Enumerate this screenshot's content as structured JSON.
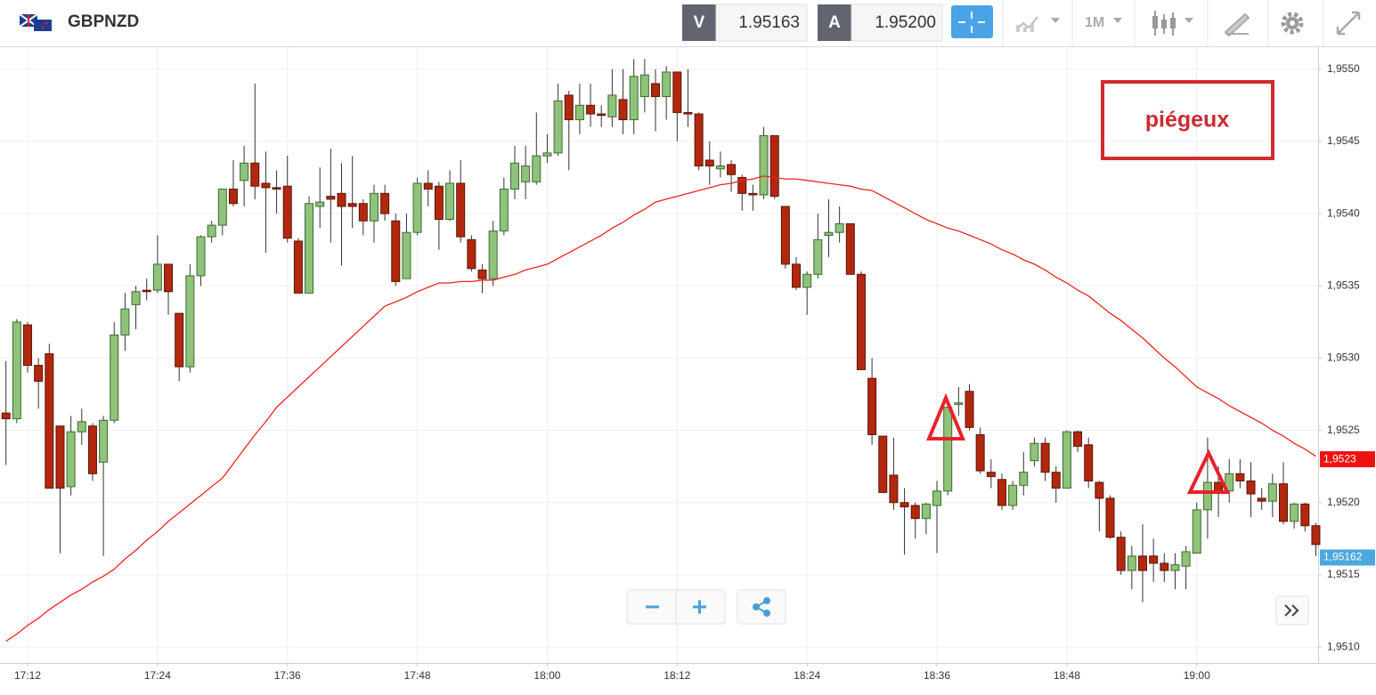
{
  "header": {
    "symbol": "GBPNZD",
    "sell_label": "V",
    "sell_price": "1.95163",
    "buy_label": "A",
    "buy_price": "1.95200",
    "timeframe": "1M"
  },
  "chart_data": {
    "type": "candlestick",
    "annotation": "piégeux",
    "categories": [
      null,
      null,
      "17:12",
      null,
      null,
      null,
      null,
      null,
      null,
      null,
      null,
      null,
      null,
      null,
      "17:24",
      null,
      null,
      null,
      null,
      null,
      null,
      null,
      null,
      null,
      null,
      null,
      "17:36",
      null,
      null,
      null,
      null,
      null,
      null,
      null,
      null,
      null,
      null,
      null,
      "17:48",
      null,
      null,
      null,
      null,
      null,
      null,
      null,
      null,
      null,
      null,
      null,
      "18:00",
      null,
      null,
      null,
      null,
      null,
      null,
      null,
      null,
      null,
      null,
      null,
      "18:12",
      null,
      null,
      null,
      null,
      null,
      null,
      null,
      null,
      null,
      null,
      null,
      "18:24",
      null,
      null,
      null,
      null,
      null,
      null,
      null,
      null,
      null,
      null,
      null,
      "18:36",
      null,
      null,
      null,
      null,
      null,
      null,
      null,
      null,
      null,
      null,
      null,
      "18:48",
      null,
      null,
      null,
      null,
      null,
      null,
      null,
      null,
      null,
      null,
      null,
      "19:00",
      null,
      null,
      null,
      null,
      null,
      null,
      null,
      null,
      null,
      null,
      null
    ],
    "open": [
      1.95262,
      1.95258,
      1.95323,
      1.95295,
      1.95303,
      1.95253,
      1.95211,
      1.95249,
      1.95253,
      1.95228,
      1.95257,
      1.95316,
      1.95337,
      1.95347,
      1.95347,
      1.95365,
      1.95331,
      1.95294,
      1.95357,
      1.95384,
      1.95392,
      1.95417,
      1.95423,
      1.95435,
      1.95421,
      1.95418,
      1.95419,
      1.95381,
      1.95345,
      1.95405,
      1.95412,
      1.95414,
      1.95407,
      1.95407,
      1.95395,
      1.95414,
      1.95395,
      1.95355,
      1.95387,
      1.95421,
      1.95419,
      1.95396,
      1.95421,
      1.95382,
      1.95361,
      1.95355,
      1.95388,
      1.95417,
      1.95422,
      1.95422,
      1.9544,
      1.95442,
      1.95482,
      1.95465,
      1.95475,
      1.95469,
      1.95467,
      1.95479,
      1.95465,
      1.95481,
      1.9549,
      1.95481,
      1.95498,
      1.9547,
      1.95469,
      1.95437,
      1.95431,
      1.95434,
      1.95425,
      1.95414,
      1.95413,
      1.95454,
      1.95405,
      1.95365,
      1.95349,
      1.95358,
      1.95385,
      1.95387,
      1.95393,
      1.95358,
      1.95286,
      1.95246,
      1.95219,
      1.952,
      1.95198,
      1.95189,
      1.95198,
      1.95208,
      1.95268,
      1.95277,
      1.95247,
      1.95221,
      1.95216,
      1.95198,
      1.95212,
      1.95229,
      1.95241,
      1.95221,
      1.9521,
      1.95249,
      1.9524,
      1.95214,
      1.95203,
      1.95176,
      1.95153,
      1.95163,
      1.95163,
      1.95158,
      1.95153,
      1.95156,
      1.95165,
      1.95195,
      1.95214,
      1.95208,
      1.9522,
      1.95215,
      1.95203,
      1.95201,
      1.95213,
      1.95187,
      1.95199,
      1.95184
    ],
    "high": [
      1.95298,
      1.95327,
      1.95325,
      1.953,
      1.9531,
      1.95253,
      1.9526,
      1.95265,
      1.95255,
      1.9526,
      1.95325,
      1.95345,
      1.9535,
      1.95355,
      1.95385,
      1.95365,
      1.95331,
      1.95365,
      1.95385,
      1.95395,
      1.95417,
      1.95437,
      1.95447,
      1.9549,
      1.95443,
      1.9543,
      1.9544,
      1.95383,
      1.95412,
      1.95432,
      1.95445,
      1.95435,
      1.9544,
      1.9541,
      1.9542,
      1.9542,
      1.954,
      1.954,
      1.95425,
      1.9543,
      1.95422,
      1.9543,
      1.95437,
      1.95385,
      1.95365,
      1.95395,
      1.95425,
      1.95447,
      1.95447,
      1.9547,
      1.95455,
      1.9549,
      1.95485,
      1.9549,
      1.9549,
      1.95475,
      1.955,
      1.955,
      1.95507,
      1.95507,
      1.955,
      1.95502,
      1.95498,
      1.955,
      1.9547,
      1.9545,
      1.95443,
      1.95437,
      1.95427,
      1.9542,
      1.9546,
      1.95454,
      1.95405,
      1.9537,
      1.9536,
      1.954,
      1.9541,
      1.95405,
      1.95393,
      1.9536,
      1.953,
      1.95246,
      1.95245,
      1.9521,
      1.952,
      1.952,
      1.95215,
      1.9527,
      1.9528,
      1.95282,
      1.95252,
      1.9523,
      1.9522,
      1.95215,
      1.95235,
      1.95245,
      1.95245,
      1.95225,
      1.9525,
      1.9525,
      1.95245,
      1.95215,
      1.95205,
      1.9518,
      1.9517,
      1.95185,
      1.95175,
      1.95165,
      1.95165,
      1.9517,
      1.952,
      1.95245,
      1.95225,
      1.9523,
      1.9523,
      1.95228,
      1.9521,
      1.9522,
      1.95228,
      1.952,
      1.952,
      1.95186
    ],
    "low": [
      1.95226,
      1.95255,
      1.9529,
      1.95265,
      1.9521,
      1.95165,
      1.95205,
      1.9524,
      1.95215,
      1.95163,
      1.95255,
      1.95305,
      1.9532,
      1.9534,
      1.95345,
      1.9533,
      1.95284,
      1.9529,
      1.9535,
      1.9538,
      1.95385,
      1.95405,
      1.95405,
      1.9541,
      1.95373,
      1.954,
      1.9538,
      1.95345,
      1.95345,
      1.9539,
      1.9538,
      1.95364,
      1.9539,
      1.95385,
      1.9538,
      1.95395,
      1.9535,
      1.95355,
      1.95385,
      1.95405,
      1.95375,
      1.95395,
      1.9538,
      1.9536,
      1.95345,
      1.9535,
      1.95385,
      1.9541,
      1.9541,
      1.9542,
      1.95435,
      1.9544,
      1.9543,
      1.95455,
      1.9546,
      1.9546,
      1.9546,
      1.95455,
      1.95455,
      1.9547,
      1.95457,
      1.95465,
      1.9545,
      1.9546,
      1.9543,
      1.9542,
      1.95425,
      1.95415,
      1.95402,
      1.95402,
      1.9541,
      1.9541,
      1.95362,
      1.95347,
      1.9533,
      1.95355,
      1.9537,
      1.9538,
      1.95358,
      1.95292,
      1.9524,
      1.95207,
      1.95195,
      1.95164,
      1.95175,
      1.95178,
      1.95165,
      1.95205,
      1.9526,
      1.9525,
      1.9522,
      1.9521,
      1.95195,
      1.95195,
      1.95205,
      1.95225,
      1.95215,
      1.952,
      1.9521,
      1.95235,
      1.9521,
      1.9518,
      1.95175,
      1.9515,
      1.9514,
      1.95131,
      1.95145,
      1.95145,
      1.9514,
      1.9514,
      1.95165,
      1.95175,
      1.9519,
      1.952,
      1.9521,
      1.9519,
      1.95195,
      1.9519,
      1.95185,
      1.95182,
      1.9518,
      1.95163
    ],
    "close": [
      1.95258,
      1.95325,
      1.95295,
      1.95284,
      1.9521,
      1.9521,
      1.95249,
      1.95256,
      1.9522,
      1.95257,
      1.95316,
      1.95334,
      1.95346,
      1.95346,
      1.95365,
      1.95346,
      1.95294,
      1.95357,
      1.95384,
      1.95392,
      1.95417,
      1.95407,
      1.95435,
      1.95419,
      1.95418,
      1.95417,
      1.95383,
      1.95345,
      1.95407,
      1.95408,
      1.9541,
      1.95405,
      1.95405,
      1.95395,
      1.95414,
      1.954,
      1.95353,
      1.95387,
      1.95421,
      1.95417,
      1.95396,
      1.95421,
      1.95384,
      1.95362,
      1.95355,
      1.95388,
      1.95417,
      1.95435,
      1.95433,
      1.9544,
      1.95442,
      1.95478,
      1.95465,
      1.95475,
      1.95469,
      1.95468,
      1.95482,
      1.95465,
      1.95495,
      1.95496,
      1.95481,
      1.95498,
      1.9547,
      1.95469,
      1.95433,
      1.95433,
      1.95433,
      1.95427,
      1.95414,
      1.95413,
      1.95454,
      1.95412,
      1.95365,
      1.95349,
      1.95358,
      1.95382,
      1.95387,
      1.95393,
      1.95358,
      1.95292,
      1.95247,
      1.95207,
      1.952,
      1.95197,
      1.95189,
      1.95199,
      1.95208,
      1.95266,
      1.95269,
      1.95252,
      1.95222,
      1.95218,
      1.95198,
      1.95212,
      1.95221,
      1.95241,
      1.95221,
      1.9521,
      1.95249,
      1.95239,
      1.95215,
      1.95203,
      1.95176,
      1.95153,
      1.95163,
      1.95153,
      1.95158,
      1.95153,
      1.95157,
      1.95166,
      1.95195,
      1.95214,
      1.95208,
      1.9522,
      1.95215,
      1.95206,
      1.95201,
      1.95213,
      1.95187,
      1.95199,
      1.95184,
      1.95171
    ],
    "up_color": "#8fc27a",
    "down_color": "#b2280e",
    "ma": {
      "color": "#ee2222",
      "values": [
        1.95104,
        1.95109,
        1.95115,
        1.9512,
        1.95126,
        1.95131,
        1.95136,
        1.9514,
        1.95145,
        1.95149,
        1.95154,
        1.95161,
        1.95167,
        1.95174,
        1.9518,
        1.95187,
        1.95193,
        1.95199,
        1.95205,
        1.95211,
        1.95217,
        1.95227,
        1.95237,
        1.95247,
        1.95256,
        1.95266,
        1.95273,
        1.9528,
        1.95287,
        1.95294,
        1.95301,
        1.95308,
        1.95315,
        1.95322,
        1.95329,
        1.95336,
        1.95339,
        1.95342,
        1.95346,
        1.95349,
        1.95352,
        1.95352,
        1.95353,
        1.95353,
        1.95354,
        1.95354,
        1.95356,
        1.95358,
        1.95361,
        1.95363,
        1.95365,
        1.95369,
        1.95373,
        1.95377,
        1.95381,
        1.95385,
        1.9539,
        1.95394,
        1.95399,
        1.95403,
        1.95408,
        1.9541,
        1.95412,
        1.95414,
        1.95416,
        1.95418,
        1.9542,
        1.95421,
        1.95423,
        1.95424,
        1.95426,
        1.95425,
        1.95424,
        1.95424,
        1.95423,
        1.95422,
        1.95421,
        1.9542,
        1.95419,
        1.95417,
        1.95416,
        1.95412,
        1.95408,
        1.95404,
        1.954,
        1.95396,
        1.95393,
        1.9539,
        1.95388,
        1.95385,
        1.95382,
        1.95379,
        1.95375,
        1.95372,
        1.95368,
        1.95365,
        1.95361,
        1.95356,
        1.95352,
        1.95347,
        1.95343,
        1.95337,
        1.95331,
        1.95326,
        1.9532,
        1.95314,
        1.95307,
        1.953,
        1.95294,
        1.95287,
        1.9528,
        1.95276,
        1.95272,
        1.95267,
        1.95263,
        1.95259,
        1.95255,
        1.9525,
        1.95246,
        1.95241,
        1.95237,
        1.95232
      ]
    },
    "price_labels": [
      {
        "value": 1.9523,
        "label": "1,9523",
        "color": "#ee1111"
      },
      {
        "value": 1.95162,
        "label": "1,95162",
        "color": "#4aa8dd"
      }
    ],
    "ylim": [
      1.95089,
      1.95514
    ],
    "yticks": [
      {
        "value": 1.951,
        "label": "1,9510"
      },
      {
        "value": 1.9515,
        "label": "1,9515"
      },
      {
        "value": 1.952,
        "label": "1,9520"
      },
      {
        "value": 1.9525,
        "label": "1,9525"
      },
      {
        "value": 1.953,
        "label": "1,9530"
      },
      {
        "value": 1.9535,
        "label": "1,9535"
      },
      {
        "value": 1.954,
        "label": "1,9540"
      },
      {
        "value": 1.9545,
        "label": "1,9545"
      },
      {
        "value": 1.955,
        "label": "1,9550"
      }
    ],
    "grid": true
  }
}
